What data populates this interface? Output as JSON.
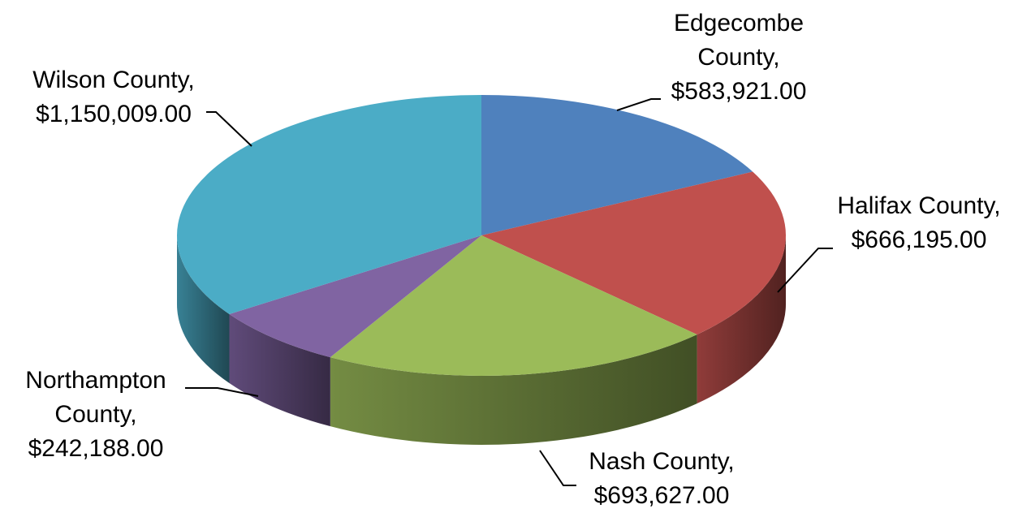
{
  "chart_data": {
    "type": "pie",
    "categories": [
      "Edgecombe County,",
      "Halifax County,",
      "Nash County,",
      "Northampton County,",
      "Wilson County,"
    ],
    "values": [
      583921,
      666195,
      693627,
      242188,
      1150009
    ],
    "value_labels": [
      "$583,921.00",
      "$666,195.00",
      "$693,627.00",
      "$242,188.00",
      "$1,150,009.00"
    ],
    "colors": [
      "#4f81bd",
      "#c0504d",
      "#9bbb59",
      "#8064a2",
      "#4bacc6"
    ]
  }
}
